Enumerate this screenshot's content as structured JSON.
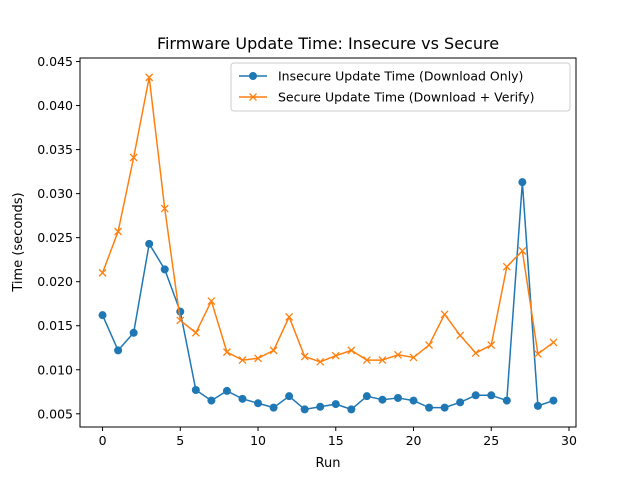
{
  "chart_data": {
    "type": "line",
    "title": "Firmware Update Time: Insecure vs Secure",
    "xlabel": "Run",
    "ylabel": "Time (seconds)",
    "xlim": [
      -1.45,
      30.45
    ],
    "ylim": [
      0.0035,
      0.0454
    ],
    "xticks": [
      0,
      5,
      10,
      15,
      20,
      25,
      30
    ],
    "xtick_labels": [
      "0",
      "5",
      "10",
      "15",
      "20",
      "25",
      "30"
    ],
    "yticks": [
      0.005,
      0.01,
      0.015,
      0.02,
      0.025,
      0.03,
      0.035,
      0.04,
      0.045
    ],
    "ytick_labels": [
      "0.005",
      "0.010",
      "0.015",
      "0.020",
      "0.025",
      "0.030",
      "0.035",
      "0.040",
      "0.045"
    ],
    "grid": false,
    "legend_position": "top-right",
    "x": [
      0,
      1,
      2,
      3,
      4,
      5,
      6,
      7,
      8,
      9,
      10,
      11,
      12,
      13,
      14,
      15,
      16,
      17,
      18,
      19,
      20,
      21,
      22,
      23,
      24,
      25,
      26,
      27,
      28,
      29
    ],
    "series": [
      {
        "name": "Insecure Update Time (Download Only)",
        "color": "#1f77b4",
        "marker": "circle",
        "values": [
          0.0162,
          0.0122,
          0.0142,
          0.0243,
          0.0214,
          0.0166,
          0.0077,
          0.0065,
          0.0076,
          0.0067,
          0.0062,
          0.0057,
          0.007,
          0.0055,
          0.0058,
          0.0061,
          0.0055,
          0.007,
          0.0066,
          0.0068,
          0.0065,
          0.0057,
          0.0057,
          0.0063,
          0.0071,
          0.0071,
          0.0065,
          0.0313,
          0.0059,
          0.0065
        ]
      },
      {
        "name": "Secure Update Time (Download + Verify)",
        "color": "#ff7f0e",
        "marker": "x",
        "values": [
          0.021,
          0.0257,
          0.0341,
          0.0432,
          0.0283,
          0.0156,
          0.0142,
          0.0178,
          0.012,
          0.0111,
          0.0113,
          0.0122,
          0.016,
          0.0115,
          0.0109,
          0.0116,
          0.0122,
          0.0111,
          0.0111,
          0.0117,
          0.0114,
          0.0128,
          0.0163,
          0.0139,
          0.0119,
          0.0128,
          0.0217,
          0.0235,
          0.0118,
          0.0131
        ]
      }
    ]
  }
}
